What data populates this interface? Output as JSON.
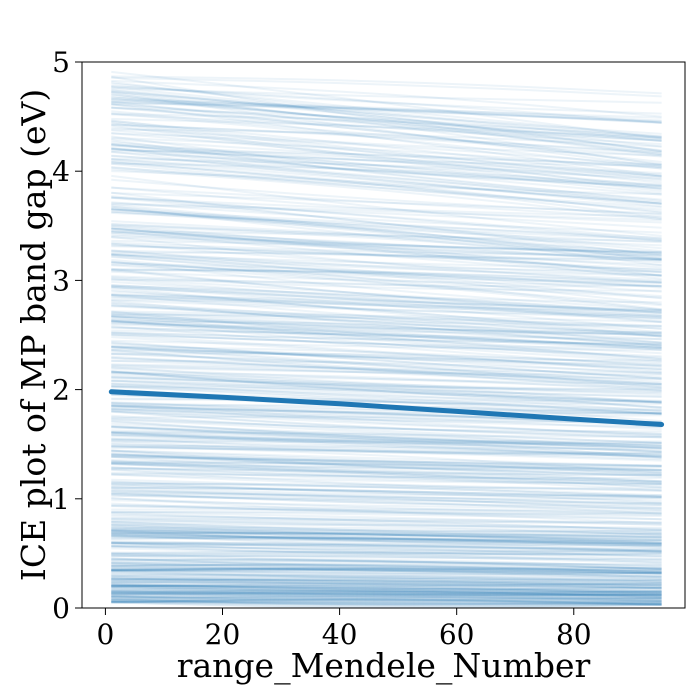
{
  "chart_data": {
    "type": "line",
    "xlabel": "range_Mendele_Number",
    "ylabel": "ICE plot of MP band gap (eV)",
    "xlim": [
      -4,
      99
    ],
    "ylim": [
      0,
      5
    ],
    "x_ticks": [
      0,
      20,
      40,
      60,
      80
    ],
    "y_ticks": [
      0,
      1,
      2,
      3,
      4,
      5
    ],
    "x_tick_labels": [
      "0",
      "20",
      "40",
      "60",
      "80"
    ],
    "y_tick_labels": [
      "0",
      "1",
      "2",
      "3",
      "4",
      "5"
    ],
    "grid": false,
    "legend": "none",
    "ice_lines": {
      "x_range": [
        1,
        95
      ],
      "y_start_range": [
        0.05,
        4.95
      ],
      "y_end_range": [
        0.03,
        4.9
      ],
      "color": "#1f77b4",
      "opacity": 0.08,
      "count": 600
    },
    "series": [
      {
        "x": [
          1,
          20,
          40,
          60,
          80,
          95
        ],
        "y": [
          1.98,
          1.93,
          1.87,
          1.8,
          1.73,
          1.68
        ],
        "color": "#1f77b4"
      }
    ]
  }
}
